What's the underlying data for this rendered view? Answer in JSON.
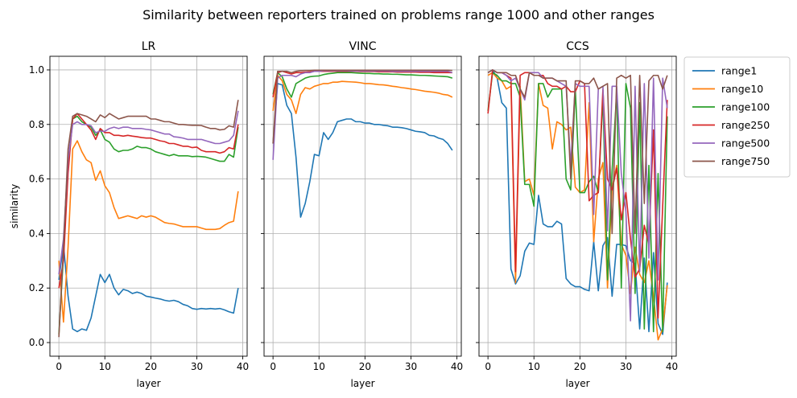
{
  "figure": {
    "suptitle": "Similarity between reporters trained on problems range 1000 and other ranges"
  },
  "colors": {
    "range1": "#1f77b4",
    "range10": "#ff7f0e",
    "range100": "#2ca02c",
    "range250": "#d62728",
    "range500": "#9467bd",
    "range750": "#8c564b"
  },
  "legend": {
    "placement": "outside-right",
    "entries": [
      " range1",
      " range10",
      " range100",
      " range250",
      " range500",
      " range750"
    ]
  },
  "chart_data": [
    {
      "type": "line",
      "title": "LR",
      "xlabel": "layer",
      "ylabel": "similarity",
      "xlim": [
        -1.95,
        40.95
      ],
      "ylim": [
        -0.05,
        1.05
      ],
      "xticks": [
        0,
        10,
        20,
        30,
        40
      ],
      "yticks": [
        0.0,
        0.2,
        0.4,
        0.6,
        0.8,
        1.0
      ],
      "grid": true,
      "x": [
        0,
        1,
        2,
        3,
        4,
        5,
        6,
        7,
        8,
        9,
        10,
        11,
        12,
        13,
        14,
        15,
        16,
        17,
        18,
        19,
        20,
        21,
        22,
        23,
        24,
        25,
        26,
        27,
        28,
        29,
        30,
        31,
        32,
        33,
        34,
        35,
        36,
        37,
        38,
        39
      ],
      "series": [
        {
          "name": "range1",
          "values": [
            0.23,
            0.36,
            0.17,
            0.05,
            0.04,
            0.05,
            0.045,
            0.09,
            0.17,
            0.25,
            0.22,
            0.25,
            0.2,
            0.175,
            0.195,
            0.19,
            0.18,
            0.185,
            0.18,
            0.17,
            0.167,
            0.163,
            0.16,
            0.155,
            0.152,
            0.155,
            0.15,
            0.14,
            0.135,
            0.125,
            0.122,
            0.125,
            0.123,
            0.125,
            0.123,
            0.125,
            0.12,
            0.113,
            0.108,
            0.2
          ]
        },
        {
          "name": "range10",
          "values": [
            0.3,
            0.075,
            0.35,
            0.71,
            0.74,
            0.7,
            0.67,
            0.66,
            0.595,
            0.63,
            0.575,
            0.55,
            0.495,
            0.455,
            0.46,
            0.465,
            0.46,
            0.455,
            0.465,
            0.46,
            0.465,
            0.46,
            0.45,
            0.44,
            0.437,
            0.435,
            0.43,
            0.425,
            0.425,
            0.425,
            0.425,
            0.42,
            0.415,
            0.415,
            0.415,
            0.418,
            0.43,
            0.44,
            0.445,
            0.555
          ]
        },
        {
          "name": "range100",
          "values": [
            0.03,
            0.32,
            0.65,
            0.82,
            0.83,
            0.81,
            0.8,
            0.79,
            0.76,
            0.78,
            0.745,
            0.735,
            0.71,
            0.7,
            0.705,
            0.705,
            0.71,
            0.72,
            0.715,
            0.715,
            0.71,
            0.7,
            0.695,
            0.69,
            0.685,
            0.69,
            0.685,
            0.685,
            0.685,
            0.682,
            0.683,
            0.682,
            0.68,
            0.675,
            0.67,
            0.665,
            0.665,
            0.69,
            0.68,
            0.79
          ]
        },
        {
          "name": "range250",
          "values": [
            0.2,
            0.3,
            0.62,
            0.82,
            0.84,
            0.82,
            0.8,
            0.78,
            0.745,
            0.785,
            0.77,
            0.77,
            0.76,
            0.76,
            0.757,
            0.76,
            0.757,
            0.755,
            0.752,
            0.75,
            0.75,
            0.745,
            0.74,
            0.737,
            0.73,
            0.73,
            0.725,
            0.72,
            0.72,
            0.715,
            0.717,
            0.705,
            0.7,
            0.7,
            0.7,
            0.695,
            0.7,
            0.715,
            0.71,
            0.8
          ]
        },
        {
          "name": "range500",
          "values": [
            0.25,
            0.38,
            0.67,
            0.8,
            0.81,
            0.8,
            0.8,
            0.795,
            0.77,
            0.775,
            0.775,
            0.785,
            0.79,
            0.785,
            0.79,
            0.79,
            0.785,
            0.785,
            0.785,
            0.782,
            0.78,
            0.775,
            0.77,
            0.765,
            0.765,
            0.755,
            0.753,
            0.75,
            0.745,
            0.745,
            0.745,
            0.745,
            0.74,
            0.735,
            0.73,
            0.73,
            0.735,
            0.74,
            0.76,
            0.85
          ]
        },
        {
          "name": "range750",
          "values": [
            0.02,
            0.35,
            0.71,
            0.83,
            0.84,
            0.835,
            0.83,
            0.82,
            0.81,
            0.835,
            0.825,
            0.84,
            0.83,
            0.82,
            0.825,
            0.83,
            0.83,
            0.83,
            0.83,
            0.83,
            0.82,
            0.82,
            0.815,
            0.81,
            0.81,
            0.805,
            0.8,
            0.8,
            0.798,
            0.797,
            0.797,
            0.796,
            0.79,
            0.785,
            0.785,
            0.78,
            0.782,
            0.795,
            0.79,
            0.89
          ]
        }
      ]
    },
    {
      "type": "line",
      "title": "VINC",
      "xlabel": "layer",
      "ylabel": "",
      "xlim": [
        -1.95,
        40.95
      ],
      "ylim": [
        -0.05,
        1.05
      ],
      "xticks": [
        0,
        10,
        20,
        30,
        40
      ],
      "yticks": [
        0.0,
        0.2,
        0.4,
        0.6,
        0.8,
        1.0
      ],
      "grid": true,
      "x": [
        0,
        1,
        2,
        3,
        4,
        5,
        6,
        7,
        8,
        9,
        10,
        11,
        12,
        13,
        14,
        15,
        16,
        17,
        18,
        19,
        20,
        21,
        22,
        23,
        24,
        25,
        26,
        27,
        28,
        29,
        30,
        31,
        32,
        33,
        34,
        35,
        36,
        37,
        38,
        39
      ],
      "series": [
        {
          "name": "range1",
          "values": [
            0.73,
            0.95,
            0.945,
            0.87,
            0.84,
            0.68,
            0.46,
            0.51,
            0.59,
            0.69,
            0.685,
            0.77,
            0.745,
            0.77,
            0.81,
            0.815,
            0.82,
            0.82,
            0.81,
            0.81,
            0.805,
            0.805,
            0.8,
            0.8,
            0.797,
            0.795,
            0.79,
            0.79,
            0.788,
            0.785,
            0.78,
            0.775,
            0.773,
            0.77,
            0.76,
            0.758,
            0.75,
            0.745,
            0.73,
            0.705
          ]
        },
        {
          "name": "range10",
          "values": [
            0.85,
            0.98,
            0.96,
            0.91,
            0.89,
            0.84,
            0.91,
            0.935,
            0.93,
            0.94,
            0.945,
            0.95,
            0.95,
            0.955,
            0.955,
            0.958,
            0.957,
            0.956,
            0.955,
            0.953,
            0.95,
            0.95,
            0.948,
            0.946,
            0.945,
            0.943,
            0.94,
            0.938,
            0.935,
            0.933,
            0.93,
            0.928,
            0.925,
            0.922,
            0.92,
            0.918,
            0.915,
            0.91,
            0.908,
            0.9
          ]
        },
        {
          "name": "range100",
          "values": [
            0.91,
            0.99,
            0.975,
            0.93,
            0.9,
            0.95,
            0.96,
            0.97,
            0.975,
            0.977,
            0.978,
            0.983,
            0.986,
            0.988,
            0.99,
            0.99,
            0.99,
            0.99,
            0.989,
            0.988,
            0.987,
            0.987,
            0.986,
            0.986,
            0.985,
            0.985,
            0.984,
            0.984,
            0.983,
            0.982,
            0.982,
            0.981,
            0.98,
            0.98,
            0.979,
            0.978,
            0.977,
            0.976,
            0.975,
            0.97
          ]
        },
        {
          "name": "range250",
          "values": [
            0.9,
            0.99,
            0.995,
            0.99,
            0.985,
            0.99,
            0.99,
            0.992,
            0.993,
            0.995,
            0.995,
            0.995,
            0.995,
            0.995,
            0.995,
            0.995,
            0.995,
            0.995,
            0.995,
            0.994,
            0.994,
            0.994,
            0.994,
            0.993,
            0.993,
            0.993,
            0.993,
            0.992,
            0.992,
            0.992,
            0.992,
            0.992,
            0.991,
            0.991,
            0.991,
            0.99,
            0.99,
            0.99,
            0.99,
            0.99
          ]
        },
        {
          "name": "range500",
          "values": [
            0.67,
            0.97,
            0.98,
            0.98,
            0.98,
            0.975,
            0.985,
            0.99,
            0.99,
            0.995,
            0.995,
            0.997,
            0.997,
            0.997,
            0.997,
            0.997,
            0.997,
            0.996,
            0.996,
            0.996,
            0.996,
            0.996,
            0.996,
            0.996,
            0.996,
            0.996,
            0.995,
            0.995,
            0.995,
            0.995,
            0.995,
            0.995,
            0.995,
            0.995,
            0.995,
            0.995,
            0.995,
            0.995,
            0.995,
            0.99
          ]
        },
        {
          "name": "range750",
          "values": [
            0.73,
            0.995,
            0.995,
            0.995,
            0.99,
            0.995,
            0.997,
            0.998,
            0.998,
            0.999,
            0.999,
            0.999,
            0.999,
            0.999,
            0.999,
            0.999,
            0.999,
            0.999,
            0.999,
            0.999,
            0.999,
            0.999,
            0.999,
            0.999,
            0.999,
            0.999,
            0.999,
            0.999,
            0.999,
            0.999,
            0.999,
            0.999,
            0.999,
            0.999,
            0.999,
            0.999,
            0.999,
            0.999,
            0.999,
            0.998
          ]
        }
      ]
    },
    {
      "type": "line",
      "title": "CCS",
      "xlabel": "layer",
      "ylabel": "",
      "xlim": [
        -1.95,
        40.95
      ],
      "ylim": [
        -0.05,
        1.05
      ],
      "xticks": [
        0,
        10,
        20,
        30,
        40
      ],
      "yticks": [
        0.0,
        0.2,
        0.4,
        0.6,
        0.8,
        1.0
      ],
      "grid": true,
      "x": [
        0,
        1,
        2,
        3,
        4,
        5,
        6,
        7,
        8,
        9,
        10,
        11,
        12,
        13,
        14,
        15,
        16,
        17,
        18,
        19,
        20,
        21,
        22,
        23,
        24,
        25,
        26,
        27,
        28,
        29,
        30,
        31,
        32,
        33,
        34,
        35,
        36,
        37,
        38,
        39
      ],
      "series": [
        {
          "name": "range1",
          "values": [
            0.99,
            1.0,
            0.97,
            0.88,
            0.86,
            0.27,
            0.215,
            0.245,
            0.335,
            0.365,
            0.36,
            0.54,
            0.435,
            0.425,
            0.425,
            0.445,
            0.435,
            0.235,
            0.215,
            0.205,
            0.205,
            0.195,
            0.19,
            0.37,
            0.19,
            0.355,
            0.385,
            0.17,
            0.36,
            0.36,
            0.355,
            0.3,
            0.29,
            0.05,
            0.31,
            0.04,
            0.33,
            0.07,
            0.03,
            0.22
          ]
        },
        {
          "name": "range10",
          "values": [
            0.98,
            0.99,
            0.97,
            0.96,
            0.93,
            0.94,
            0.22,
            0.94,
            0.59,
            0.6,
            0.54,
            0.95,
            0.87,
            0.86,
            0.71,
            0.81,
            0.8,
            0.78,
            0.79,
            0.57,
            0.55,
            0.56,
            0.88,
            0.37,
            0.6,
            0.66,
            0.2,
            0.57,
            0.65,
            0.36,
            0.32,
            0.18,
            0.35,
            0.25,
            0.22,
            0.3,
            0.17,
            0.01,
            0.05,
            0.21
          ]
        },
        {
          "name": "range100",
          "values": [
            0.85,
            0.99,
            0.98,
            0.96,
            0.96,
            0.95,
            0.95,
            0.9,
            0.58,
            0.58,
            0.5,
            0.95,
            0.95,
            0.9,
            0.93,
            0.93,
            0.93,
            0.6,
            0.56,
            0.93,
            0.55,
            0.55,
            0.59,
            0.61,
            0.55,
            0.9,
            0.23,
            0.63,
            0.92,
            0.2,
            0.95,
            0.86,
            0.18,
            0.88,
            0.05,
            0.65,
            0.04,
            0.62,
            0.04,
            0.83
          ]
        },
        {
          "name": "range250",
          "values": [
            0.84,
            1.0,
            0.99,
            0.99,
            0.98,
            0.97,
            0.26,
            0.98,
            0.99,
            0.99,
            0.98,
            0.98,
            0.98,
            0.95,
            0.94,
            0.94,
            0.93,
            0.94,
            0.92,
            0.92,
            0.96,
            0.95,
            0.52,
            0.54,
            0.55,
            0.93,
            0.6,
            0.56,
            0.64,
            0.45,
            0.55,
            0.38,
            0.24,
            0.27,
            0.43,
            0.36,
            0.78,
            0.09,
            0.5,
            0.89
          ]
        },
        {
          "name": "range500",
          "values": [
            0.99,
            1.0,
            0.99,
            0.99,
            0.98,
            0.96,
            0.97,
            0.93,
            0.89,
            0.99,
            0.99,
            0.99,
            0.97,
            0.97,
            0.97,
            0.96,
            0.95,
            0.94,
            0.65,
            0.95,
            0.94,
            0.94,
            0.94,
            0.47,
            0.93,
            0.94,
            0.41,
            0.94,
            0.94,
            0.62,
            0.48,
            0.08,
            0.94,
            0.26,
            0.95,
            0.31,
            0.97,
            0.23,
            0.97,
            0.86
          ]
        },
        {
          "name": "range750",
          "values": [
            0.99,
            1.0,
            0.99,
            0.99,
            0.99,
            0.98,
            0.98,
            0.93,
            0.9,
            0.99,
            0.98,
            0.98,
            0.97,
            0.97,
            0.97,
            0.96,
            0.96,
            0.96,
            0.6,
            0.96,
            0.96,
            0.95,
            0.95,
            0.97,
            0.93,
            0.94,
            0.95,
            0.4,
            0.97,
            0.98,
            0.97,
            0.98,
            0.4,
            0.98,
            0.51,
            0.96,
            0.98,
            0.98,
            0.93,
            0.98
          ]
        }
      ]
    }
  ]
}
